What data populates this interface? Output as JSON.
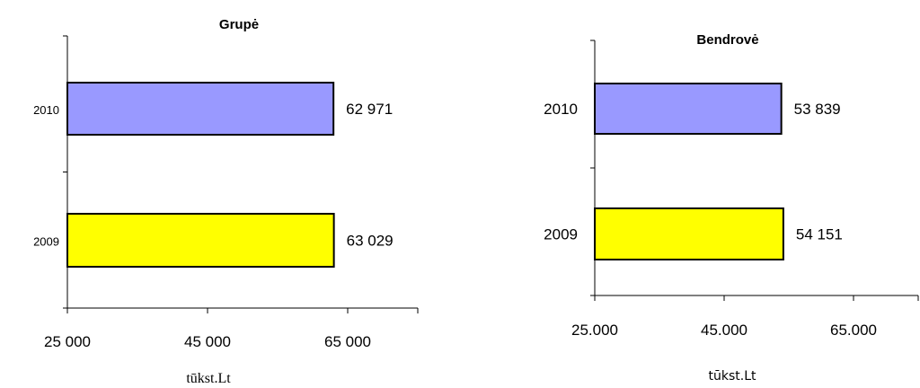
{
  "chart_data": [
    {
      "type": "bar",
      "orientation": "horizontal",
      "title": "Grupė",
      "categories": [
        "2010",
        "2009"
      ],
      "values": [
        62971,
        63029
      ],
      "value_labels": [
        "62 971",
        "63 029"
      ],
      "xlim": [
        25000,
        75000
      ],
      "xticks": [
        25000,
        45000,
        65000
      ],
      "xtick_labels": [
        "25 000",
        "45 000",
        "65 000"
      ],
      "xlabel": "tūkst.Lt",
      "bar_colors": [
        "#9999ff",
        "#ffff00"
      ],
      "grid": false
    },
    {
      "type": "bar",
      "orientation": "horizontal",
      "title": "Bendrovė",
      "categories": [
        "2010",
        "2009"
      ],
      "values": [
        53839,
        54151
      ],
      "value_labels": [
        "53 839",
        "54 151"
      ],
      "xlim": [
        25000,
        75000
      ],
      "xticks": [
        25000,
        45000,
        65000
      ],
      "xtick_labels": [
        "25.000",
        "45.000",
        "65.000"
      ],
      "xlabel": "tūkst.Lt",
      "bar_colors": [
        "#9999ff",
        "#ffff00"
      ],
      "grid": false
    }
  ]
}
